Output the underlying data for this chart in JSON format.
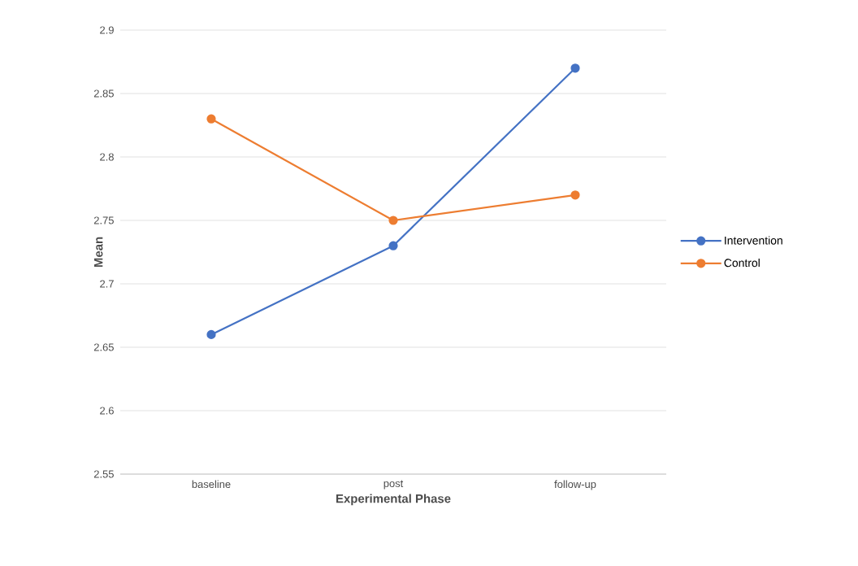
{
  "chart_data": {
    "type": "line",
    "xlabel": "Experimental Phase",
    "ylabel": "Mean",
    "categories": [
      "baseline",
      "post",
      "follow-up"
    ],
    "series": [
      {
        "name": "Intervention",
        "color": "#4472c4",
        "values": [
          2.66,
          2.73,
          2.87
        ]
      },
      {
        "name": "Control",
        "color": "#ed7d31",
        "values": [
          2.83,
          2.75,
          2.77
        ]
      }
    ],
    "ylim": [
      2.55,
      2.9
    ],
    "yticks": [
      2.55,
      2.6,
      2.65,
      2.7,
      2.75,
      2.8,
      2.85,
      2.9
    ],
    "grid": "y",
    "legend": "right",
    "marker": "circle",
    "line_style": "solid"
  }
}
